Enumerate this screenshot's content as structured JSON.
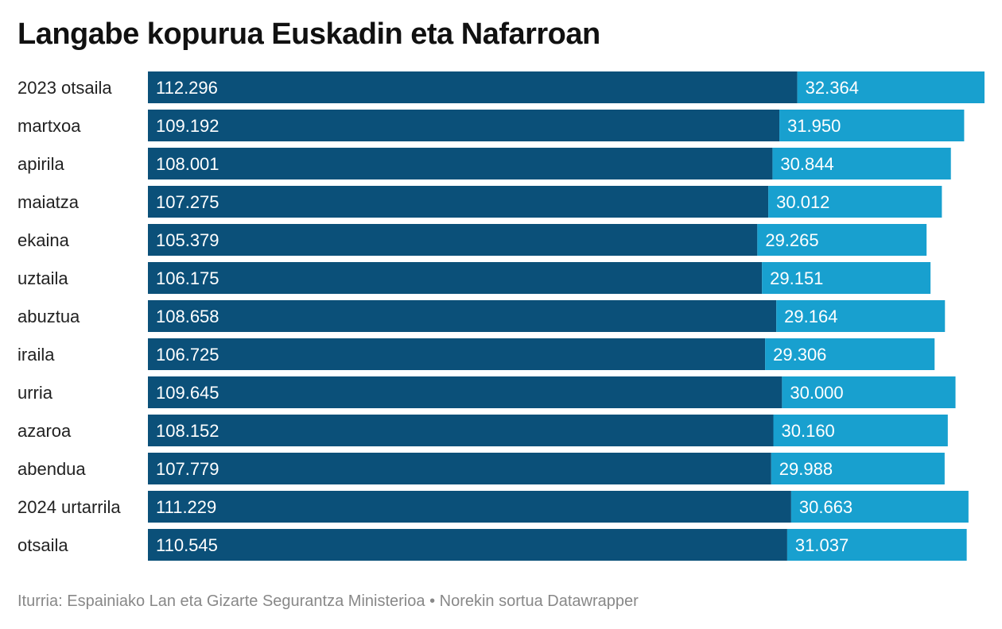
{
  "title": "Langabe kopurua Euskadin eta Nafarroan",
  "footer": {
    "source": "Iturria: Espainiako Lan eta Gizarte Segurantza Ministerioa",
    "separator": "•",
    "credit": "Norekin sortua Datawrapper"
  },
  "colors": {
    "series1": "#0b5079",
    "series2": "#18a0cf"
  },
  "chart_data": {
    "type": "bar",
    "orientation": "horizontal",
    "stacked": true,
    "title": "Langabe kopurua Euskadin eta Nafarroan",
    "categories": [
      "2023 otsaila",
      "martxoa",
      "apirila",
      "maiatza",
      "ekaina",
      "uztaila",
      "abuztua",
      "iraila",
      "urria",
      "azaroa",
      "abendua",
      "2024 urtarrila",
      "otsaila"
    ],
    "series": [
      {
        "values": [
          112296,
          109192,
          108001,
          107275,
          105379,
          106175,
          108658,
          106725,
          109645,
          108152,
          107779,
          111229,
          110545
        ],
        "labels": [
          "112.296",
          "109.192",
          "108.001",
          "107.275",
          "105.379",
          "106.175",
          "108.658",
          "106.725",
          "109.645",
          "108.152",
          "107.779",
          "111.229",
          "110.545"
        ],
        "color": "#0b5079"
      },
      {
        "values": [
          32364,
          31950,
          30844,
          30012,
          29265,
          29151,
          29164,
          29306,
          30000,
          30160,
          29988,
          30663,
          31037
        ],
        "labels": [
          "32.364",
          "31.950",
          "30.844",
          "30.012",
          "29.265",
          "29.151",
          "29.164",
          "29.306",
          "30.000",
          "30.160",
          "29.988",
          "30.663",
          "31.037"
        ],
        "color": "#18a0cf"
      }
    ],
    "grid": false,
    "legend": "none"
  }
}
